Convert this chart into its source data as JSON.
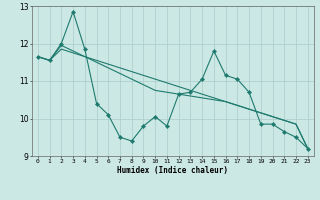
{
  "title": "",
  "xlabel": "Humidex (Indice chaleur)",
  "xlim": [
    -0.5,
    23.5
  ],
  "ylim": [
    9,
    13
  ],
  "yticks": [
    9,
    10,
    11,
    12,
    13
  ],
  "xticks": [
    0,
    1,
    2,
    3,
    4,
    5,
    6,
    7,
    8,
    9,
    10,
    11,
    12,
    13,
    14,
    15,
    16,
    17,
    18,
    19,
    20,
    21,
    22,
    23
  ],
  "background_color": "#cce8e4",
  "grid_color": "#aaccca",
  "line_color": "#1e7a6e",
  "series1": [
    11.65,
    11.55,
    12.0,
    12.85,
    11.85,
    10.4,
    10.1,
    9.5,
    9.4,
    9.8,
    10.05,
    9.8,
    10.65,
    10.7,
    11.05,
    11.8,
    11.15,
    11.05,
    10.7,
    9.85,
    9.85,
    9.65,
    9.5,
    9.2
  ],
  "series2": [
    11.65,
    11.55,
    11.95,
    11.8,
    11.65,
    11.5,
    11.35,
    11.2,
    11.05,
    10.9,
    10.75,
    10.7,
    10.65,
    10.6,
    10.55,
    10.5,
    10.45,
    10.35,
    10.25,
    10.15,
    10.05,
    9.95,
    9.85,
    9.2
  ],
  "series3": [
    11.65,
    11.55,
    11.85,
    11.75,
    11.65,
    11.55,
    11.45,
    11.35,
    11.25,
    11.15,
    11.05,
    10.95,
    10.85,
    10.75,
    10.65,
    10.55,
    10.45,
    10.35,
    10.25,
    10.15,
    10.05,
    9.95,
    9.85,
    9.2
  ]
}
